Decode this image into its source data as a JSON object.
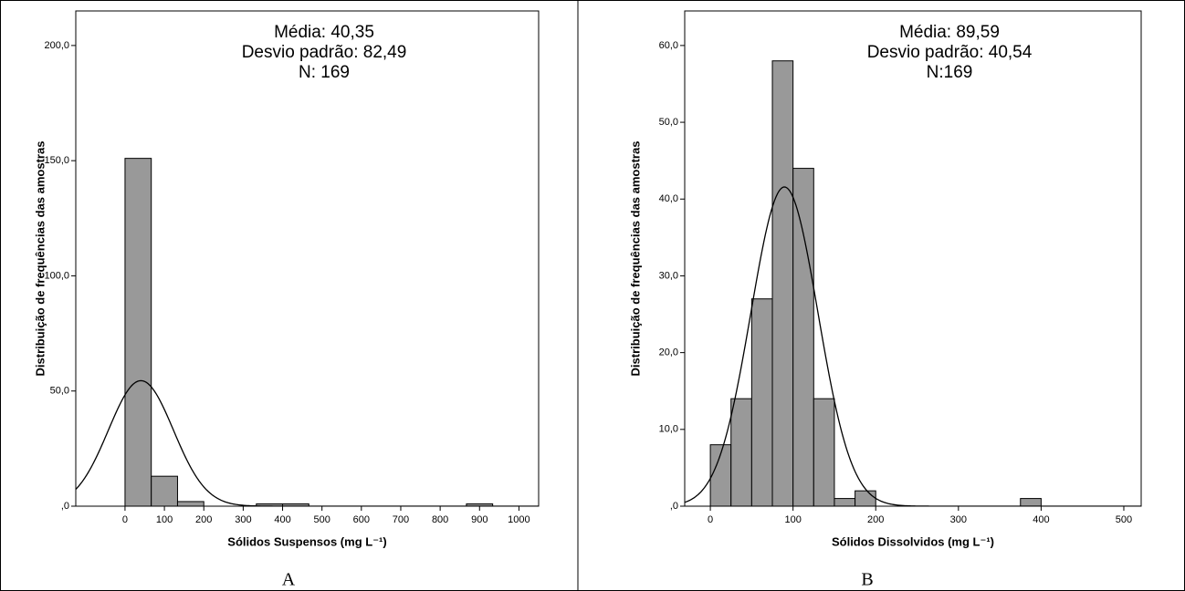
{
  "chart_data": [
    {
      "type": "histogram",
      "x_label": "Sólidos Suspensos (mg L⁻¹)",
      "y_label": "Distribuição de frequências das amostras",
      "panel_label": "A",
      "annotation": [
        "Média: 40,35",
        "Desvio padrão: 82,49",
        "N: 169"
      ],
      "stats": {
        "mean": 40.35,
        "sd": 82.49,
        "n": 169
      },
      "bins": [
        0,
        66.67,
        133.33,
        200,
        266.67,
        333.33,
        400,
        466.67,
        533.33,
        600,
        666.67,
        733.33,
        800,
        866.67,
        933.33,
        1000
      ],
      "counts": [
        151,
        13,
        2,
        0,
        0,
        1,
        1,
        0,
        0,
        0,
        0,
        0,
        0,
        1,
        0
      ],
      "color": "#999999",
      "xlim": [
        -125,
        1050
      ],
      "xticks": [
        0,
        100,
        200,
        300,
        400,
        500,
        600,
        700,
        800,
        900,
        1000
      ],
      "ylim": [
        0,
        215
      ],
      "yticks": [
        {
          "value": 0,
          "label": ",0"
        },
        {
          "value": 50,
          "label": "50,0"
        },
        {
          "value": 100,
          "label": "100,0"
        },
        {
          "value": 150,
          "label": "150,0"
        },
        {
          "value": 200,
          "label": "200,0"
        }
      ]
    },
    {
      "type": "histogram",
      "x_label": "Sólidos Dissolvidos (mg L⁻¹)",
      "y_label": "Distribuição de frequências das amostras",
      "panel_label": "B",
      "annotation": [
        "Média: 89,59",
        "Desvio padrão: 40,54",
        "N:169"
      ],
      "stats": {
        "mean": 89.59,
        "sd": 40.54,
        "n": 169
      },
      "bins": [
        0,
        25,
        50,
        75,
        100,
        125,
        150,
        175,
        200,
        225,
        250,
        275,
        300,
        325,
        350,
        375,
        400
      ],
      "counts": [
        8,
        14,
        27,
        58,
        44,
        14,
        1,
        2,
        0,
        0,
        0,
        0,
        0,
        0,
        0,
        1
      ],
      "color": "#999999",
      "xlim": [
        -31,
        521
      ],
      "xticks": [
        0,
        100,
        200,
        300,
        400,
        500
      ],
      "ylim": [
        0,
        64.5
      ],
      "yticks": [
        {
          "value": 0,
          "label": ",0"
        },
        {
          "value": 10,
          "label": "10,0"
        },
        {
          "value": 20,
          "label": "20,0"
        },
        {
          "value": 30,
          "label": "30,0"
        },
        {
          "value": 40,
          "label": "40,0"
        },
        {
          "value": 50,
          "label": "50,0"
        },
        {
          "value": 60,
          "label": "60,0"
        }
      ]
    }
  ]
}
